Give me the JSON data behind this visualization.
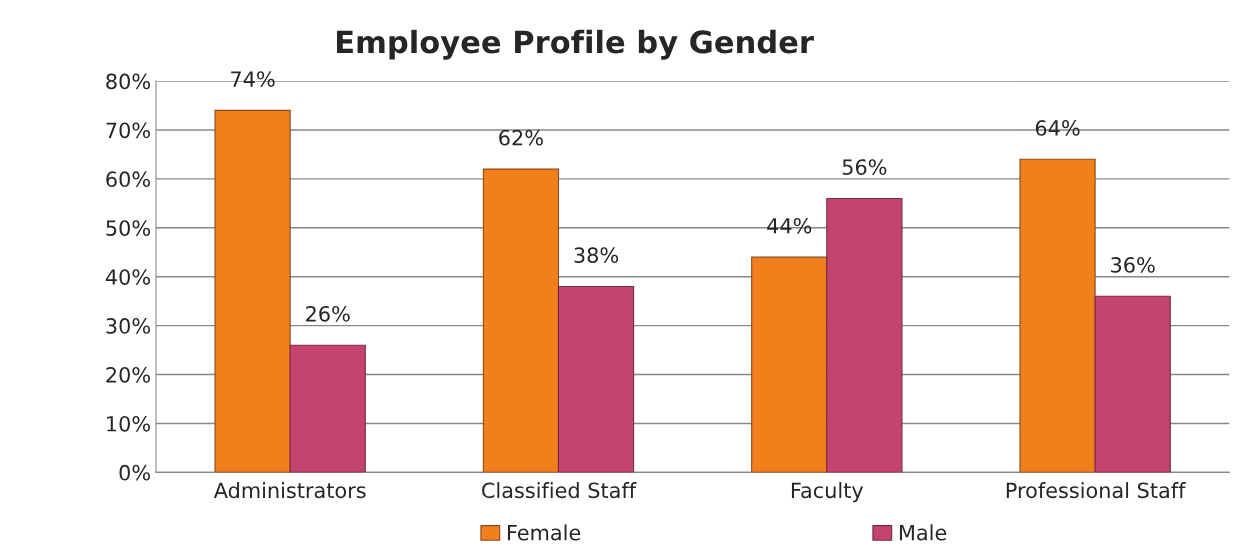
{
  "chart_data": {
    "type": "bar",
    "title": "Employee Profile by Gender",
    "categories": [
      "Administrators",
      "Classified Staff",
      "Faculty",
      "Professional Staff"
    ],
    "series": [
      {
        "name": "Female",
        "color": "#f07f1c",
        "values": [
          74,
          62,
          44,
          64
        ],
        "value_labels": [
          "74%",
          "62%",
          "44%",
          "64%"
        ]
      },
      {
        "name": "Male",
        "color": "#c4436f",
        "values": [
          26,
          38,
          56,
          36
        ],
        "value_labels": [
          "26%",
          "38%",
          "56%",
          "36%"
        ]
      }
    ],
    "ylim": [
      0,
      80
    ],
    "yticks": [
      {
        "value": 0,
        "label": "0%"
      },
      {
        "value": 10,
        "label": "10%"
      },
      {
        "value": 20,
        "label": "20%"
      },
      {
        "value": 30,
        "label": "30%"
      },
      {
        "value": 40,
        "label": "40%"
      },
      {
        "value": 50,
        "label": "50%"
      },
      {
        "value": 60,
        "label": "60%"
      },
      {
        "value": 70,
        "label": "70%"
      },
      {
        "value": 80,
        "label": "80%"
      }
    ],
    "grid": "y",
    "legend": "bottom"
  }
}
